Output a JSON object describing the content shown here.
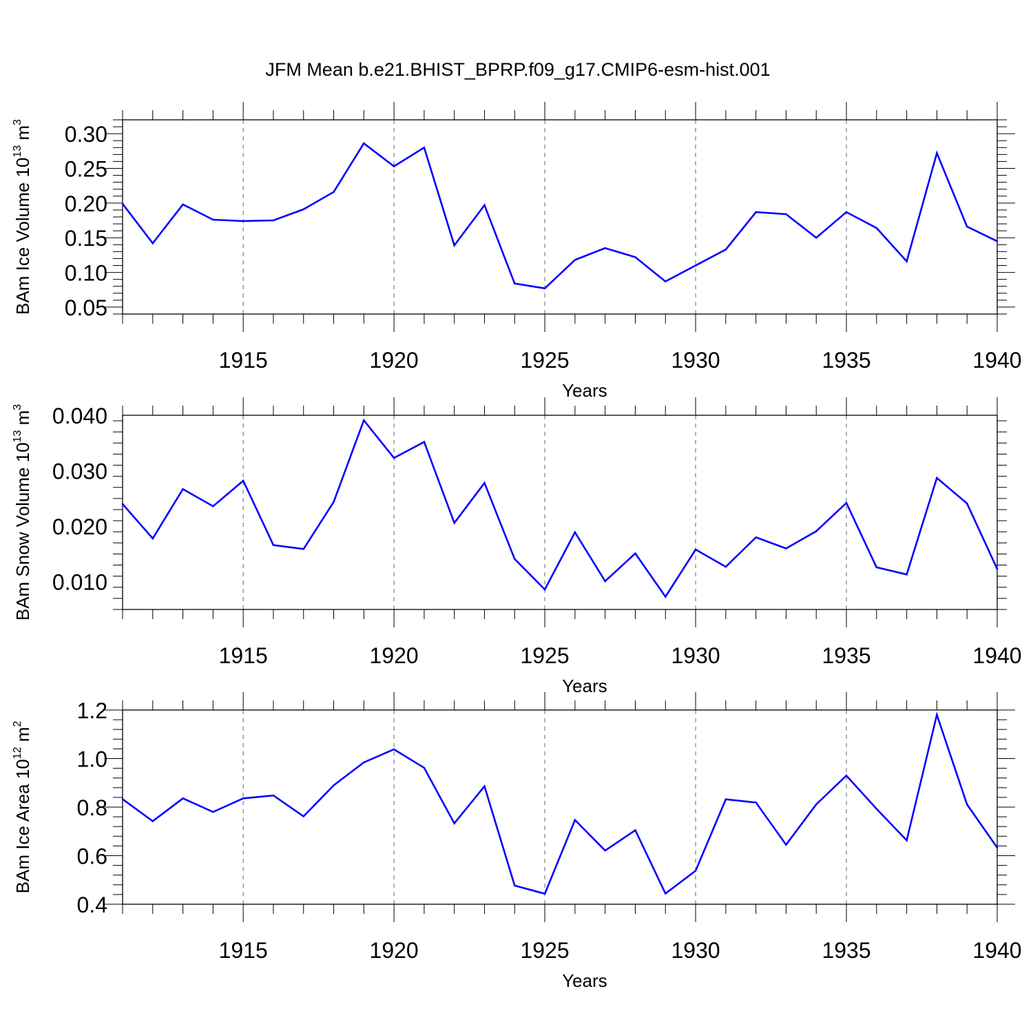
{
  "figure_title": "JFM Mean b.e21.BHIST_BPRP.f09_g17.CMIP6-esm-hist.001",
  "chart_data": [
    {
      "type": "line",
      "title": "",
      "xlabel": "Years",
      "ylabel": {
        "prefix": "BAm Ice Volume 10",
        "exponent": "13",
        "unit": " m",
        "unit_exponent": "3"
      },
      "xlim": [
        1911,
        1940
      ],
      "ylim": [
        0.04,
        0.32
      ],
      "x_ticks": [
        1915,
        1920,
        1925,
        1930,
        1935,
        1940
      ],
      "x_tick_labels": [
        "1915",
        "1920",
        "1925",
        "1930",
        "1935",
        "1940"
      ],
      "y_ticks": [
        0.05,
        0.1,
        0.15,
        0.2,
        0.25,
        0.3
      ],
      "y_tick_labels": [
        "0.05",
        "0.10",
        "0.15",
        "0.20",
        "0.25",
        "0.30"
      ],
      "color": "#0000ff",
      "x": [
        1911,
        1912,
        1913,
        1914,
        1915,
        1916,
        1917,
        1918,
        1919,
        1920,
        1921,
        1922,
        1923,
        1924,
        1925,
        1926,
        1927,
        1928,
        1929,
        1930,
        1931,
        1932,
        1933,
        1934,
        1935,
        1936,
        1937,
        1938,
        1939,
        1940
      ],
      "values": [
        0.199,
        0.142,
        0.198,
        0.176,
        0.174,
        0.175,
        0.191,
        0.216,
        0.286,
        0.253,
        0.28,
        0.139,
        0.197,
        0.084,
        0.077,
        0.118,
        0.135,
        0.122,
        0.087,
        0.11,
        0.133,
        0.187,
        0.184,
        0.15,
        0.187,
        0.164,
        0.116,
        0.272,
        0.166,
        0.145
      ]
    },
    {
      "type": "line",
      "title": "",
      "xlabel": "Years",
      "ylabel": {
        "prefix": "BAm Snow Volume 10",
        "exponent": "13",
        "unit": " m",
        "unit_exponent": "3"
      },
      "xlim": [
        1911,
        1940
      ],
      "ylim": [
        0.005,
        0.04
      ],
      "x_ticks": [
        1915,
        1920,
        1925,
        1930,
        1935,
        1940
      ],
      "x_tick_labels": [
        "1915",
        "1920",
        "1925",
        "1930",
        "1935",
        "1940"
      ],
      "y_ticks": [
        0.01,
        0.02,
        0.03,
        0.04
      ],
      "y_tick_labels": [
        "0.010",
        "0.020",
        "0.030",
        "0.040"
      ],
      "color": "#0000ff",
      "x": [
        1911,
        1912,
        1913,
        1914,
        1915,
        1916,
        1917,
        1918,
        1919,
        1920,
        1921,
        1922,
        1923,
        1924,
        1925,
        1926,
        1927,
        1928,
        1929,
        1930,
        1931,
        1932,
        1933,
        1934,
        1935,
        1936,
        1937,
        1938,
        1939,
        1940
      ],
      "values": [
        0.024,
        0.0178,
        0.0267,
        0.0236,
        0.0282,
        0.0166,
        0.0159,
        0.0244,
        0.0391,
        0.0323,
        0.0352,
        0.0206,
        0.0278,
        0.0141,
        0.0086,
        0.0189,
        0.0101,
        0.0151,
        0.0073,
        0.0158,
        0.0127,
        0.018,
        0.016,
        0.0191,
        0.0242,
        0.0126,
        0.0113,
        0.0287,
        0.0241,
        0.0123
      ]
    },
    {
      "type": "line",
      "title": "",
      "xlabel": "Years",
      "ylabel": {
        "prefix": "BAm Ice Area 10",
        "exponent": "12",
        "unit": " m",
        "unit_exponent": "2"
      },
      "xlim": [
        1911,
        1940
      ],
      "ylim": [
        0.4,
        1.2
      ],
      "x_ticks": [
        1915,
        1920,
        1925,
        1930,
        1935,
        1940
      ],
      "x_tick_labels": [
        "1915",
        "1920",
        "1925",
        "1930",
        "1935",
        "1940"
      ],
      "y_ticks": [
        0.4,
        0.6,
        0.8,
        1.0,
        1.2
      ],
      "y_tick_labels": [
        "0.4",
        "0.6",
        "0.8",
        "1.0",
        "1.2"
      ],
      "color": "#0000ff",
      "x": [
        1911,
        1912,
        1913,
        1914,
        1915,
        1916,
        1917,
        1918,
        1919,
        1920,
        1921,
        1922,
        1923,
        1924,
        1925,
        1926,
        1927,
        1928,
        1929,
        1930,
        1931,
        1932,
        1933,
        1934,
        1935,
        1936,
        1937,
        1938,
        1939,
        1940
      ],
      "values": [
        0.833,
        0.742,
        0.836,
        0.78,
        0.836,
        0.848,
        0.762,
        0.89,
        0.984,
        1.038,
        0.962,
        0.733,
        0.886,
        0.477,
        0.443,
        0.747,
        0.621,
        0.705,
        0.444,
        0.538,
        0.832,
        0.819,
        0.645,
        0.811,
        0.93,
        0.793,
        0.663,
        1.18,
        0.811,
        0.633
      ]
    }
  ]
}
